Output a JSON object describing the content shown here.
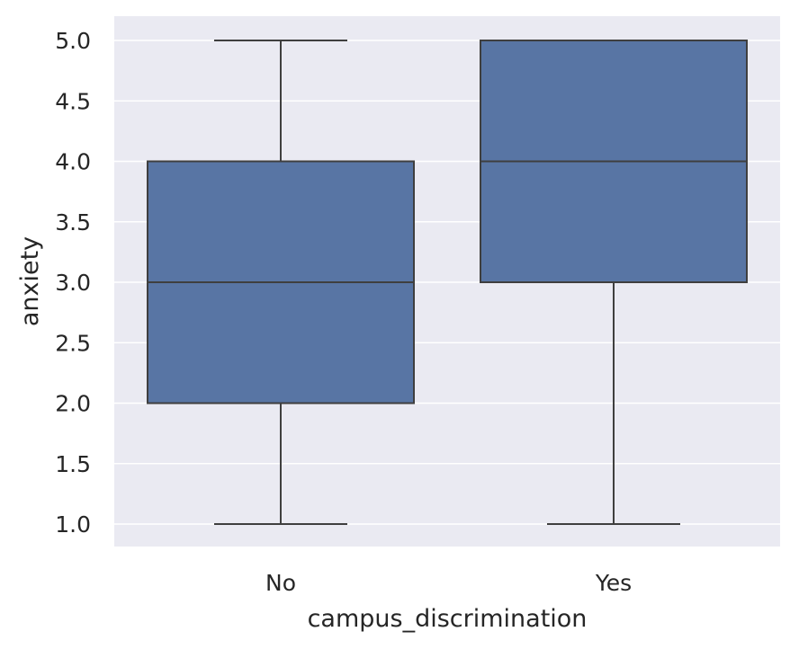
{
  "chart_data": {
    "type": "box",
    "xlabel": "campus_discrimination",
    "ylabel": "anxiety",
    "categories": [
      "No",
      "Yes"
    ],
    "boxes": [
      {
        "category": "No",
        "whisker_low": 1.0,
        "q1": 2.0,
        "median": 3.0,
        "q3": 4.0,
        "whisker_high": 5.0
      },
      {
        "category": "Yes",
        "whisker_low": 1.0,
        "q1": 3.0,
        "median": 4.0,
        "q3": 5.0,
        "whisker_high": 5.0
      }
    ],
    "yticks": [
      1.0,
      1.5,
      2.0,
      2.5,
      3.0,
      3.5,
      4.0,
      4.5,
      5.0
    ],
    "ytick_labels": [
      "1.0",
      "1.5",
      "2.0",
      "2.5",
      "3.0",
      "3.5",
      "4.0",
      "4.5",
      "5.0"
    ],
    "ylim": [
      0.8,
      5.2
    ],
    "grid": true,
    "colors": {
      "box_fill": "#5875a4",
      "box_line": "#3f3f3f",
      "plot_background": "#eaeaf2",
      "grid": "#ffffff"
    }
  }
}
